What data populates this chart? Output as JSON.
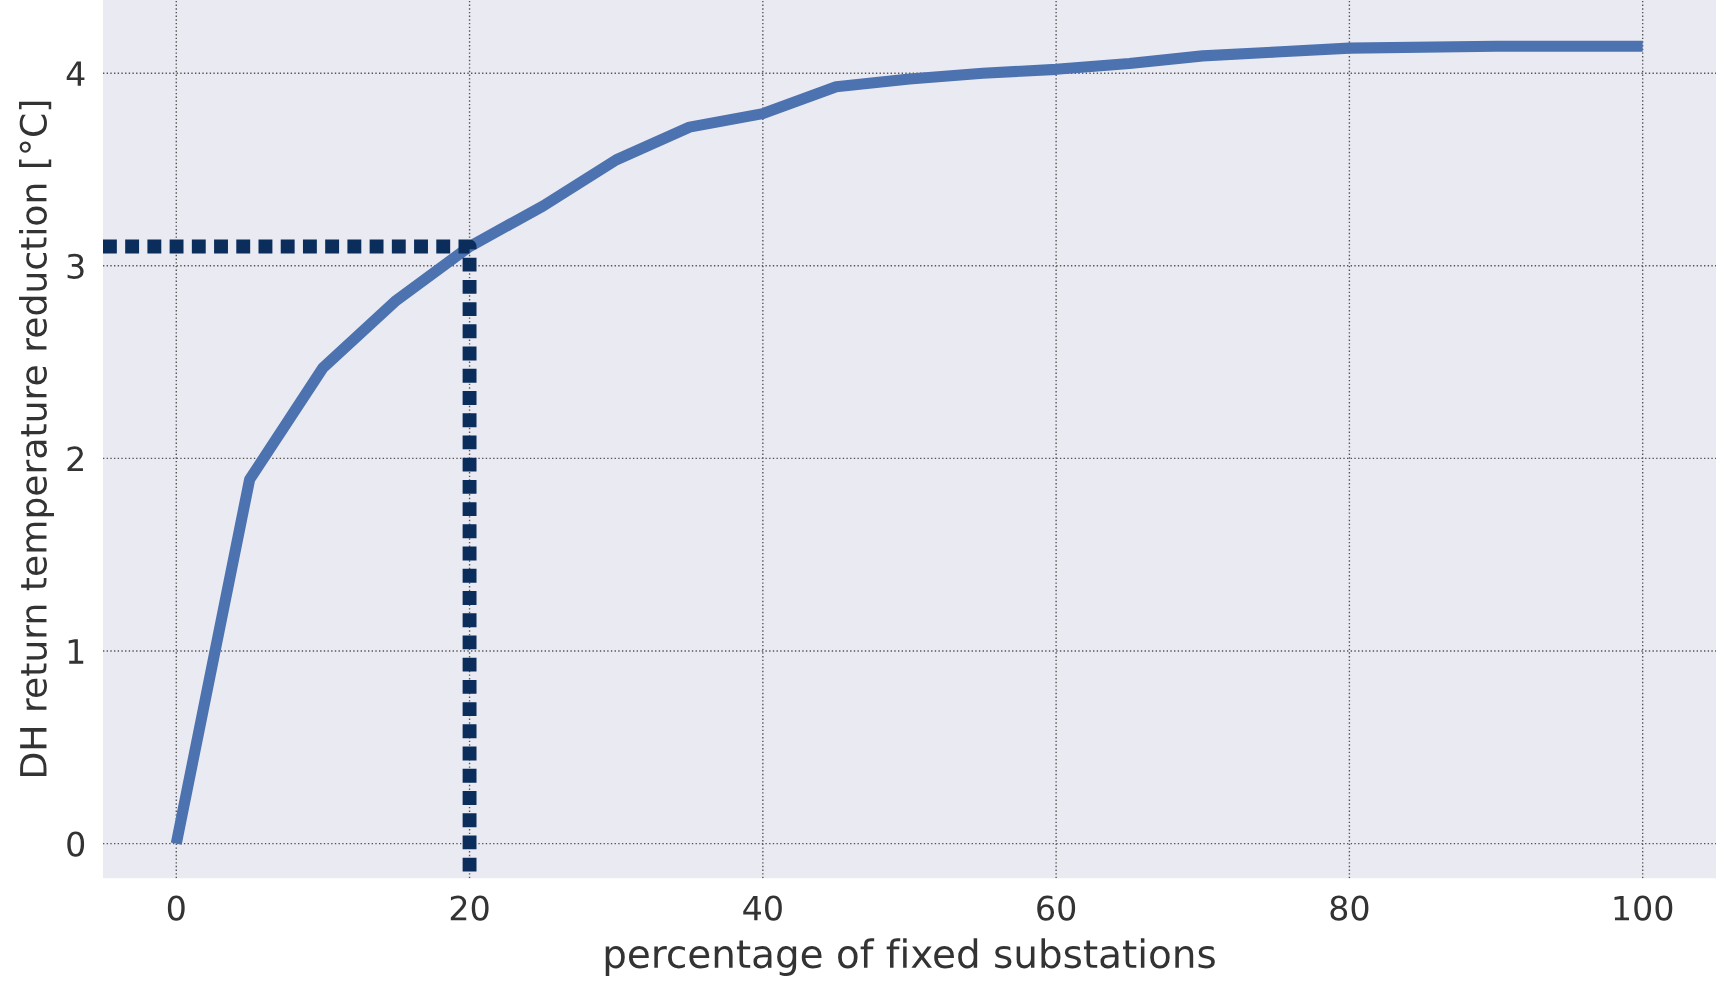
{
  "chart_data": {
    "type": "line",
    "xlabel": "percentage of fixed substations",
    "ylabel": "DH return temperature reduction [°C]",
    "xlim": [
      -5,
      105
    ],
    "ylim": [
      -0.18,
      4.38
    ],
    "xticks": [
      0,
      20,
      40,
      60,
      80,
      100
    ],
    "yticks": [
      0,
      1,
      2,
      3,
      4
    ],
    "grid": true,
    "marker": "none",
    "series": [
      {
        "color": "#4c72b0",
        "line_style": "solid",
        "x": [
          0,
          5,
          10,
          15,
          20,
          25,
          30,
          35,
          40,
          45,
          50,
          55,
          60,
          65,
          70,
          75,
          80,
          90,
          100
        ],
        "values": [
          0,
          1.89,
          2.47,
          2.82,
          3.1,
          3.31,
          3.55,
          3.72,
          3.79,
          3.93,
          3.97,
          4.0,
          4.02,
          4.05,
          4.09,
          4.11,
          4.13,
          4.14,
          4.14
        ]
      },
      {
        "color": "#0b2d5b",
        "line_style": "dotted",
        "x": [
          -5,
          20,
          20
        ],
        "values": [
          3.1,
          3.1,
          -0.18
        ]
      }
    ]
  }
}
